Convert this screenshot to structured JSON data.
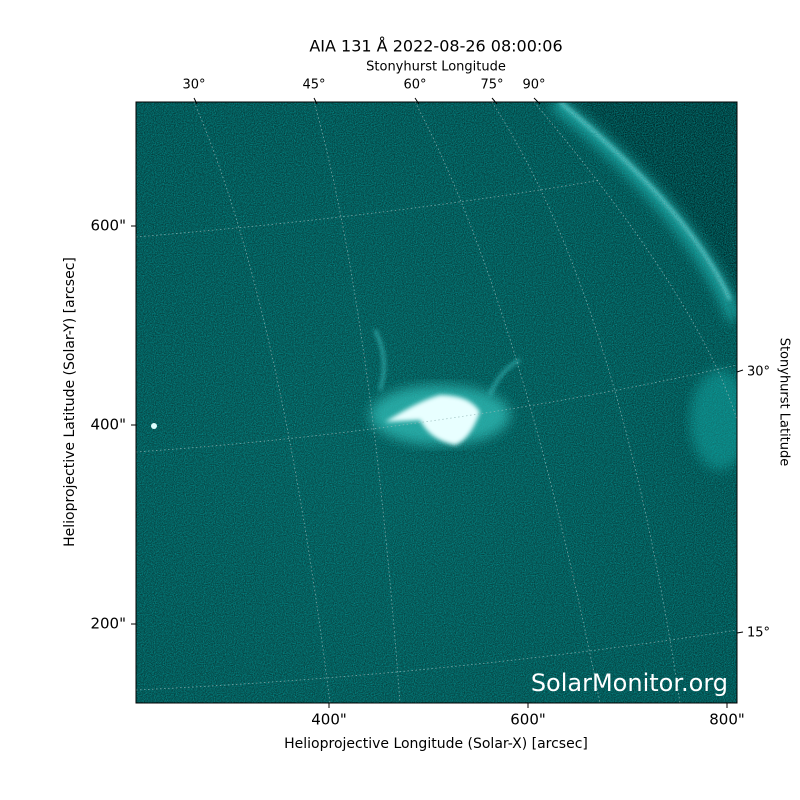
{
  "title": "AIA 131 Å 2022-08-26 08:00:06",
  "top_axis": {
    "label": "Stonyhurst Longitude",
    "ticks": [
      "30°",
      "45°",
      "60°",
      "75°",
      "90°"
    ]
  },
  "right_axis": {
    "label": "Stonyhurst Latitude",
    "ticks": [
      "30°",
      "15°"
    ]
  },
  "x_axis": {
    "label": "Helioprojective Longitude (Solar-X) [arcsec]",
    "ticks": [
      "400\"",
      "600\"",
      "800\""
    ]
  },
  "y_axis": {
    "label": "Helioprojective Latitude (Solar-Y) [arcsec]",
    "ticks": [
      "600\"",
      "400\"",
      "200\""
    ]
  },
  "watermark": "SolarMonitor.org"
}
